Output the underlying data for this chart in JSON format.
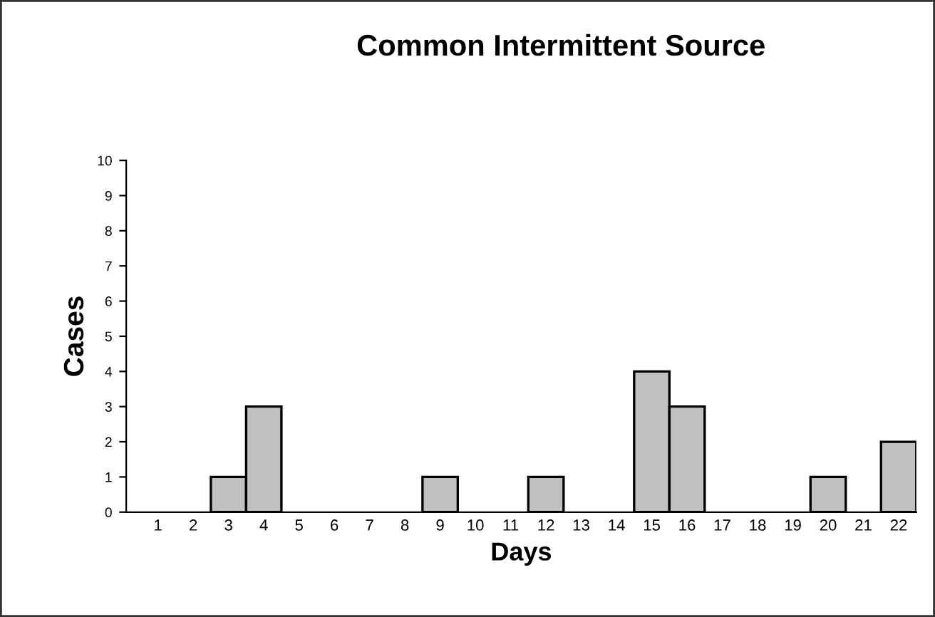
{
  "chart_data": {
    "type": "bar",
    "title": "Common Intermittent Source",
    "xlabel": "Days",
    "ylabel": "Cases",
    "categories": [
      "1",
      "2",
      "3",
      "4",
      "5",
      "6",
      "7",
      "8",
      "9",
      "10",
      "11",
      "12",
      "13",
      "14",
      "15",
      "16",
      "17",
      "18",
      "19",
      "20",
      "21",
      "22"
    ],
    "values": [
      0,
      0,
      1,
      3,
      0,
      0,
      0,
      0,
      1,
      0,
      0,
      1,
      0,
      0,
      4,
      3,
      0,
      0,
      0,
      1,
      0,
      2
    ],
    "color": "#c0c0c0",
    "ylim": [
      0,
      10
    ],
    "yticks": [
      0,
      1,
      2,
      3,
      4,
      5,
      6,
      7,
      8,
      9,
      10
    ],
    "grid": false
  }
}
